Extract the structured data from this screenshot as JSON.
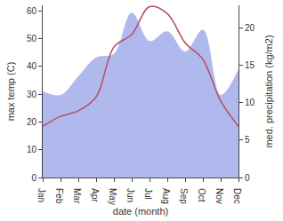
{
  "chart_data": {
    "type": "line",
    "x_label": "date (month)",
    "y_label": "max temp (C)",
    "y2_label": "med. precipitation (kg/m2)",
    "categories": [
      "Jan",
      "Feb",
      "Mar",
      "Apr",
      "May",
      "Jun",
      "Jul",
      "Aug",
      "Sep",
      "Oct",
      "Nov",
      "Dec"
    ],
    "ylim": [
      0,
      62
    ],
    "yticks": [
      0,
      10,
      20,
      30,
      40,
      50,
      60
    ],
    "y2lim": [
      0,
      23
    ],
    "y2ticks": [
      0,
      5,
      10,
      15,
      20
    ],
    "grid": false,
    "series": [
      {
        "name": "med. precipitation",
        "type": "area",
        "axis": "y2",
        "color": "#b0b9ee",
        "line_style": "smooth",
        "values": [
          11.5,
          11,
          13.5,
          16,
          16.5,
          22,
          18.2,
          19.5,
          16.8,
          19.7,
          11,
          14.4
        ]
      },
      {
        "name": "max temp",
        "type": "line",
        "color": "#b5505e",
        "line_style": "smooth",
        "values": [
          18.4,
          22,
          24,
          29,
          47,
          51.5,
          61.5,
          59,
          48.5,
          42.5,
          27.5,
          18.4
        ]
      }
    ]
  }
}
